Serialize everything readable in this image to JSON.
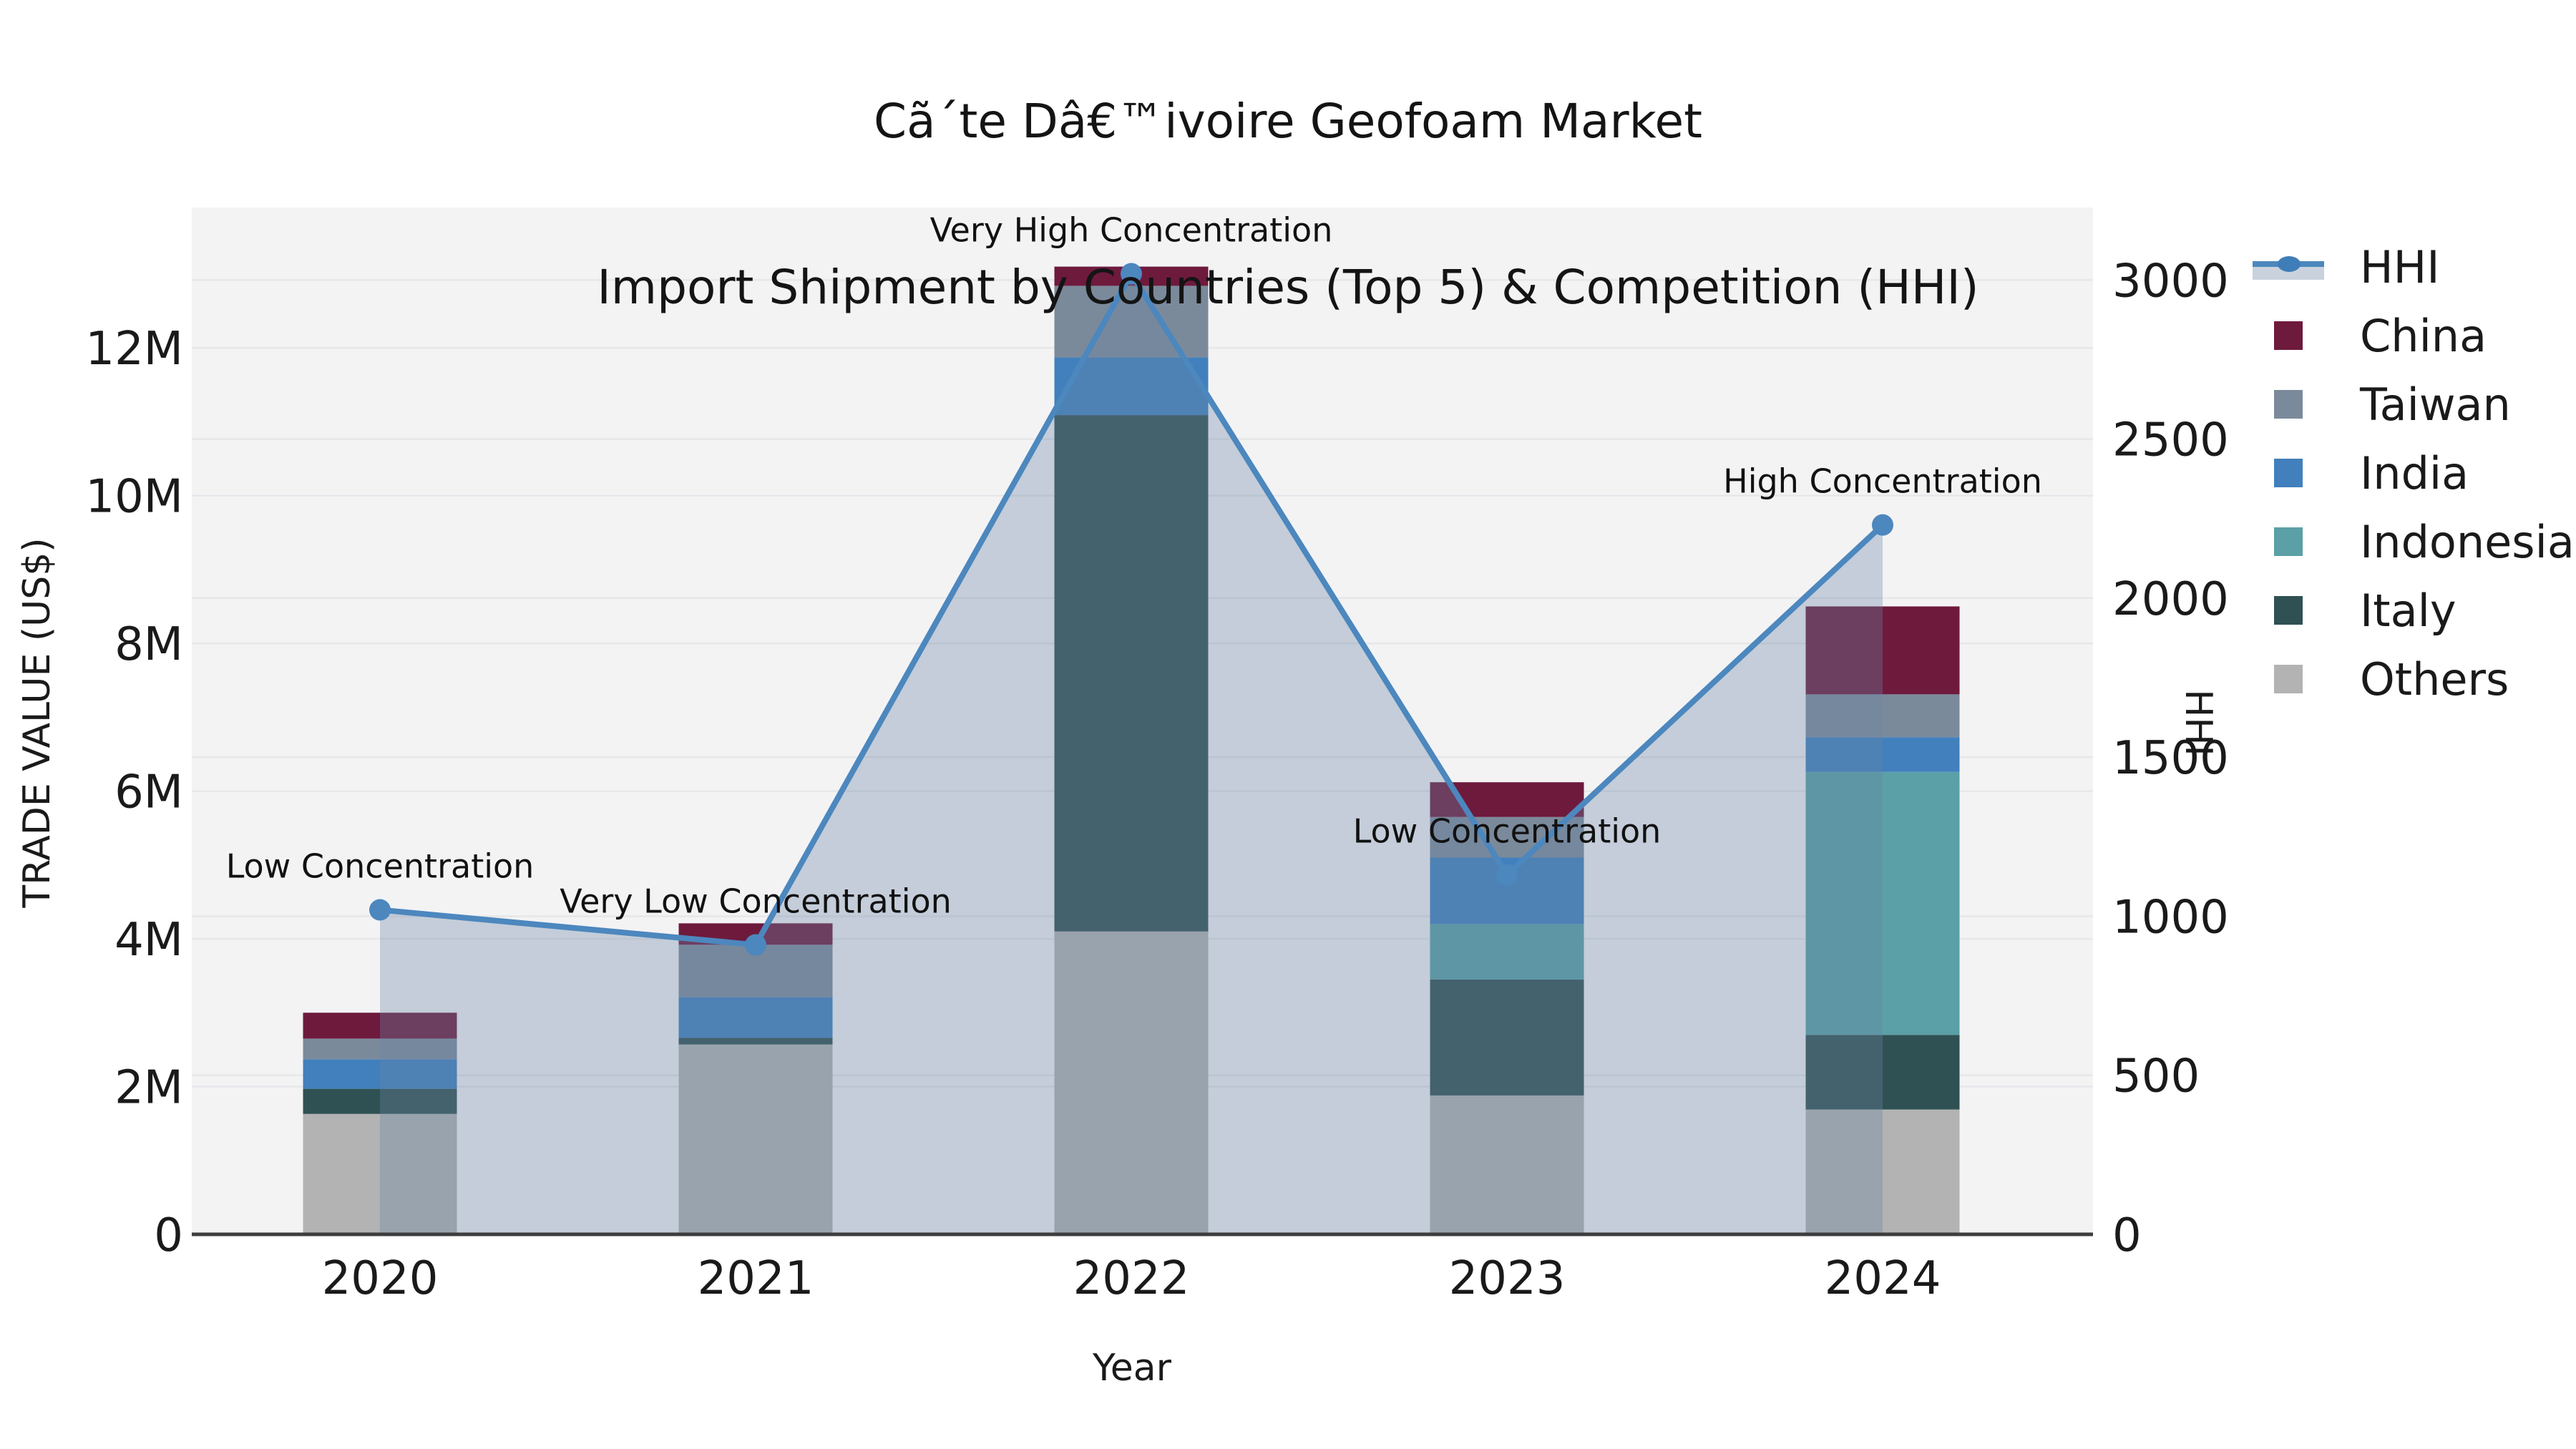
{
  "title": {
    "line1": "Cã´te Dâ€™ivoire Geofoam Market",
    "line2": "Import Shipment by Countries (Top 5) & Competition (HHI)"
  },
  "axes": {
    "x_title": "Year",
    "y_left_title": "TRADE VALUE (US$)",
    "y_right_title": "HHI"
  },
  "chart_data": {
    "type": "bar+line",
    "subtype": "stacked bars (trade value) with HHI line + shaded area, dual y-axes",
    "categories": [
      "2020",
      "2021",
      "2022",
      "2023",
      "2024"
    ],
    "value_unit": "million US$",
    "stack_order_bottom_up": [
      "Others",
      "Italy",
      "Indonesia",
      "India",
      "Taiwan",
      "China"
    ],
    "series": [
      {
        "name": "China",
        "color": "#6e1a3d",
        "values": [
          0.35,
          0.29,
          0.26,
          0.47,
          1.19
        ]
      },
      {
        "name": "Taiwan",
        "color": "#7b8a9b",
        "values": [
          0.28,
          0.71,
          0.97,
          0.55,
          0.58
        ]
      },
      {
        "name": "India",
        "color": "#4180bd",
        "values": [
          0.4,
          0.55,
          0.78,
          0.9,
          0.47
        ]
      },
      {
        "name": "Indonesia",
        "color": "#5aa0a6",
        "values": [
          0.0,
          0.0,
          0.0,
          0.75,
          3.56
        ]
      },
      {
        "name": "Italy",
        "color": "#2f5153",
        "values": [
          0.34,
          0.09,
          6.99,
          1.57,
          1.01
        ]
      },
      {
        "name": "Others",
        "color": "#b2b3b2",
        "values": [
          1.63,
          2.57,
          4.1,
          1.88,
          1.69
        ]
      }
    ],
    "totals": [
      3.0,
      4.21,
      13.1,
      6.12,
      8.5
    ],
    "hhi": {
      "name": "HHI",
      "color": "#4c87be",
      "area_color": "rgba(106,131,165,0.34)",
      "values": [
        1020,
        910,
        3020,
        1130,
        2230
      ]
    },
    "annotations": [
      "Low Concentration",
      "Very Low Concentration",
      "Very High Concentration",
      "Low Concentration",
      "High Concentration"
    ],
    "left_axis": {
      "ticks": [
        {
          "v": 0,
          "label": "0"
        },
        {
          "v": 2,
          "label": "2M"
        },
        {
          "v": 4,
          "label": "4M"
        },
        {
          "v": 6,
          "label": "6M"
        },
        {
          "v": 8,
          "label": "8M"
        },
        {
          "v": 10,
          "label": "10M"
        },
        {
          "v": 12,
          "label": "12M"
        }
      ],
      "ylim": [
        0,
        13.9
      ]
    },
    "right_axis": {
      "ticks": [
        {
          "v": 0,
          "label": "0"
        },
        {
          "v": 500,
          "label": "500"
        },
        {
          "v": 1000,
          "label": "1000"
        },
        {
          "v": 1500,
          "label": "1500"
        },
        {
          "v": 2000,
          "label": "2000"
        },
        {
          "v": 2500,
          "label": "2500"
        },
        {
          "v": 3000,
          "label": "3000"
        }
      ],
      "ylim": [
        0,
        3228
      ]
    },
    "grid": true,
    "legend_position": "right",
    "plot_bg": "#f3f3f4",
    "grid_color": "#e6e7e9",
    "baseline_color": "#3d3d3d",
    "tick_label_color": "#1a1a1a",
    "annotation_color": "#111111"
  }
}
